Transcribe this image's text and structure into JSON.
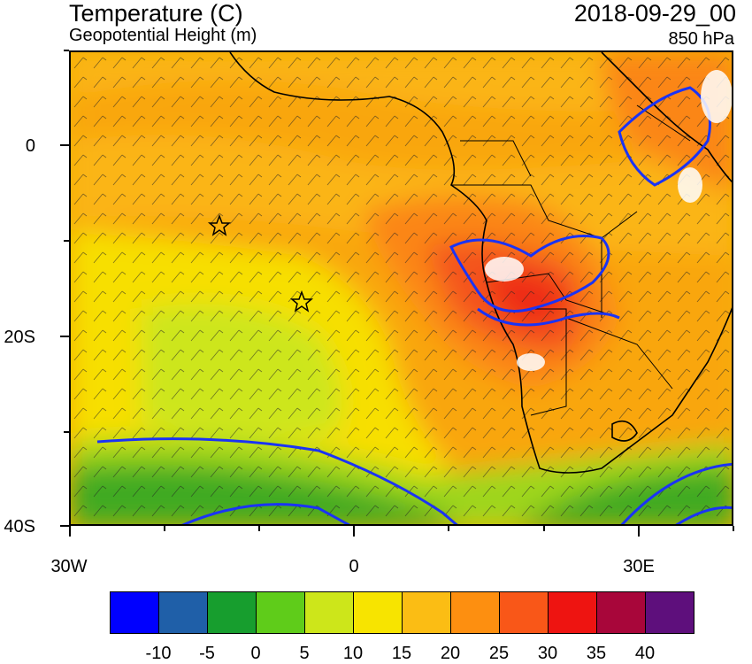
{
  "header": {
    "title": "Temperature (C)",
    "subtitle": "Geopotential Height (m)",
    "datetime": "2018-09-29_00",
    "level": "850 hPa"
  },
  "axes": {
    "lat_labels": [
      "0",
      "20S",
      "40S"
    ],
    "lon_labels": [
      "30W",
      "0",
      "30E"
    ]
  },
  "colorbar": {
    "colors": [
      "#0000ff",
      "#1f5fa8",
      "#179e2e",
      "#5fcc1a",
      "#cde61a",
      "#f7e400",
      "#fbbd14",
      "#fd8f10",
      "#f95718",
      "#ee1411",
      "#a8063a",
      "#5e0f7c"
    ],
    "labels": [
      "-10",
      "-5",
      "0",
      "5",
      "10",
      "15",
      "20",
      "25",
      "30",
      "35",
      "40"
    ]
  },
  "markers": {
    "star_symbol": "star-icon"
  },
  "palette": {
    "contour_color": "#1a33f5",
    "coast_color": "#000000"
  }
}
